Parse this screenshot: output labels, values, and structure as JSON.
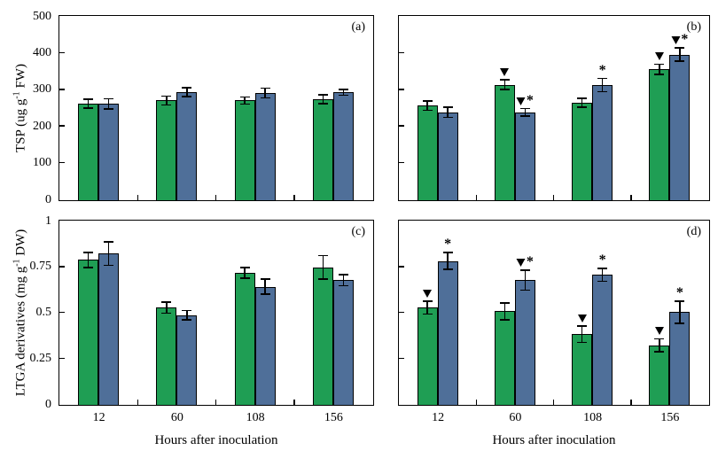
{
  "figure": {
    "xlabel": "Hours after inoculation",
    "background": "#ffffff",
    "axis_color": "#000000",
    "bar_colors": {
      "green": "#1F9E54",
      "blue": "#4F6F99"
    }
  },
  "chart_data": [
    {
      "id": "a",
      "type": "bar",
      "panel_label": "(a)",
      "categories": [
        "12",
        "60",
        "108",
        "156"
      ],
      "ylabel": "TSP (ug g-1 FW)",
      "ylabel_parts": {
        "pre": "TSP (ug g",
        "sup": "-1",
        "post": " FW)"
      },
      "ylim": [
        0,
        500
      ],
      "yticks": [
        {
          "v": 0,
          "label": "0"
        },
        {
          "v": 100,
          "label": "100"
        },
        {
          "v": 200,
          "label": "200"
        },
        {
          "v": 300,
          "label": "300"
        },
        {
          "v": 400,
          "label": "400"
        },
        {
          "v": 500,
          "label": "500"
        }
      ],
      "show_ytick_labels": true,
      "show_xtick_labels": false,
      "series": [
        {
          "name": "green",
          "color": "#1F9E54",
          "values": [
            263,
            272,
            272,
            275
          ],
          "errors": [
            12,
            12,
            10,
            12
          ],
          "markers": [
            "",
            "",
            "",
            ""
          ]
        },
        {
          "name": "blue",
          "color": "#4F6F99",
          "values": [
            263,
            295,
            292,
            294
          ],
          "errors": [
            14,
            12,
            13,
            8
          ],
          "markers": [
            "",
            "",
            "",
            ""
          ]
        }
      ]
    },
    {
      "id": "b",
      "type": "bar",
      "panel_label": "(b)",
      "categories": [
        "12",
        "60",
        "108",
        "156"
      ],
      "ylabel": "",
      "ylim": [
        0,
        500
      ],
      "yticks": [
        {
          "v": 0,
          "label": "0"
        },
        {
          "v": 100,
          "label": "100"
        },
        {
          "v": 200,
          "label": "200"
        },
        {
          "v": 300,
          "label": "300"
        },
        {
          "v": 400,
          "label": "400"
        },
        {
          "v": 500,
          "label": "500"
        }
      ],
      "show_ytick_labels": false,
      "show_xtick_labels": false,
      "series": [
        {
          "name": "green",
          "color": "#1F9E54",
          "values": [
            258,
            315,
            266,
            357
          ],
          "errors": [
            13,
            13,
            12,
            14
          ],
          "markers": [
            "",
            "▼",
            "",
            "▼"
          ]
        },
        {
          "name": "blue",
          "color": "#4F6F99",
          "values": [
            240,
            240,
            314,
            397
          ],
          "errors": [
            14,
            10,
            18,
            18
          ],
          "markers": [
            "",
            "▼*",
            "*",
            "▼*"
          ]
        }
      ]
    },
    {
      "id": "c",
      "type": "bar",
      "panel_label": "(c)",
      "categories": [
        "12",
        "60",
        "108",
        "156"
      ],
      "ylabel": "LTGA derivatives (mg g-1 DW)",
      "ylabel_parts": {
        "pre": "LTGA derivatives (mg g",
        "sup": "-1",
        "post": " DW)"
      },
      "ylim": [
        0,
        1
      ],
      "yticks": [
        {
          "v": 0,
          "label": "0"
        },
        {
          "v": 0.25,
          "label": "0.25"
        },
        {
          "v": 0.5,
          "label": "0.5"
        },
        {
          "v": 0.75,
          "label": "0.75"
        },
        {
          "v": 1,
          "label": "1"
        }
      ],
      "show_ytick_labels": true,
      "show_xtick_labels": true,
      "series": [
        {
          "name": "green",
          "color": "#1F9E54",
          "values": [
            0.79,
            0.53,
            0.72,
            0.75
          ],
          "errors": [
            0.04,
            0.03,
            0.03,
            0.065
          ],
          "markers": [
            "",
            "",
            "",
            ""
          ]
        },
        {
          "name": "blue",
          "color": "#4F6F99",
          "values": [
            0.825,
            0.49,
            0.645,
            0.68
          ],
          "errors": [
            0.065,
            0.025,
            0.04,
            0.03
          ],
          "markers": [
            "",
            "",
            "",
            ""
          ]
        }
      ]
    },
    {
      "id": "d",
      "type": "bar",
      "panel_label": "(d)",
      "categories": [
        "12",
        "60",
        "108",
        "156"
      ],
      "ylabel": "",
      "ylim": [
        0,
        1
      ],
      "yticks": [
        {
          "v": 0,
          "label": "0"
        },
        {
          "v": 0.25,
          "label": "0.25"
        },
        {
          "v": 0.5,
          "label": "0.5"
        },
        {
          "v": 0.75,
          "label": "0.75"
        },
        {
          "v": 1,
          "label": "1"
        }
      ],
      "show_ytick_labels": false,
      "show_xtick_labels": true,
      "series": [
        {
          "name": "green",
          "color": "#1F9E54",
          "values": [
            0.53,
            0.51,
            0.385,
            0.325
          ],
          "errors": [
            0.035,
            0.045,
            0.045,
            0.035
          ],
          "markers": [
            "▼",
            "",
            "▼",
            "▼"
          ]
        },
        {
          "name": "blue",
          "color": "#4F6F99",
          "values": [
            0.785,
            0.68,
            0.71,
            0.505
          ],
          "errors": [
            0.045,
            0.055,
            0.035,
            0.06
          ],
          "markers": [
            "*",
            "▼*",
            "*",
            "*"
          ]
        }
      ]
    }
  ]
}
